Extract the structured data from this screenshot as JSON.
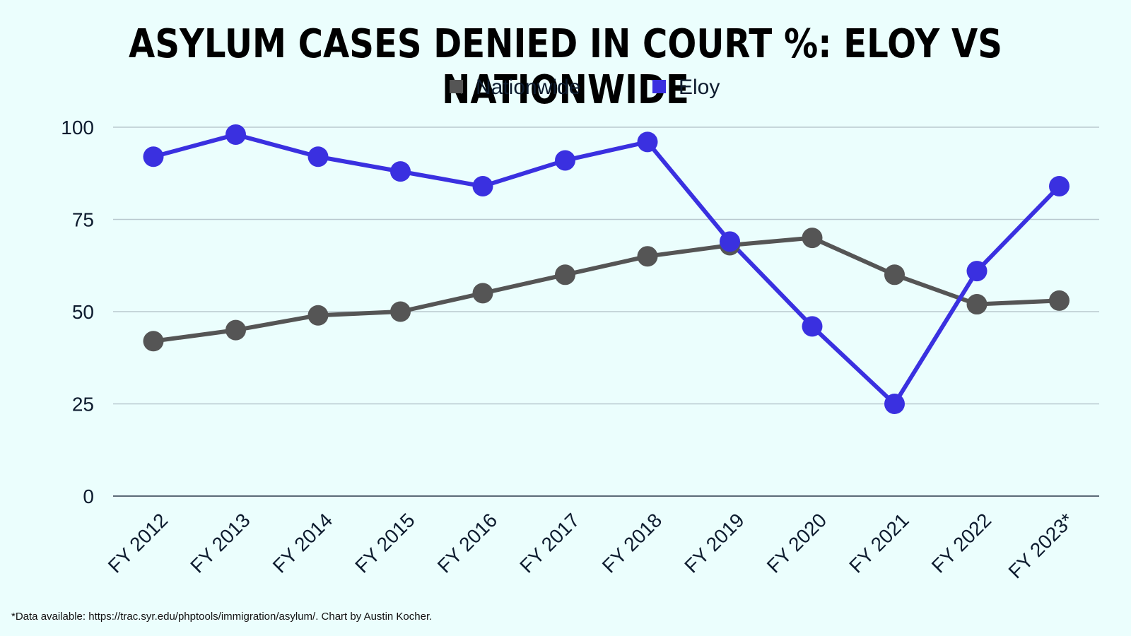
{
  "chart_data": {
    "type": "line",
    "title": "ASYLUM CASES DENIED IN COURT %: ELOY VS NATIONWIDE",
    "categories": [
      "FY 2012",
      "FY 2013",
      "FY 2014",
      "FY 2015",
      "FY 2016",
      "FY 2017",
      "FY 2018",
      "FY 2019",
      "FY 2020",
      "FY 2021",
      "FY 2022",
      "FY 2023*"
    ],
    "series": [
      {
        "name": "Nationwide",
        "color": "#555555",
        "values": [
          42,
          45,
          49,
          50,
          55,
          60,
          65,
          68,
          70,
          60,
          52,
          53
        ]
      },
      {
        "name": "Eloy",
        "color": "#3a30e0",
        "values": [
          92,
          98,
          92,
          88,
          84,
          91,
          96,
          69,
          46,
          25,
          61,
          84
        ]
      }
    ],
    "ylim": [
      0,
      100
    ],
    "yticks": [
      0,
      25,
      50,
      75,
      100
    ],
    "grid": true,
    "legend_position": "top-center",
    "xlabel": "",
    "ylabel": ""
  },
  "footnote": "*Data available: https://trac.syr.edu/phptools/immigration/asylum/. Chart by Austin Kocher."
}
